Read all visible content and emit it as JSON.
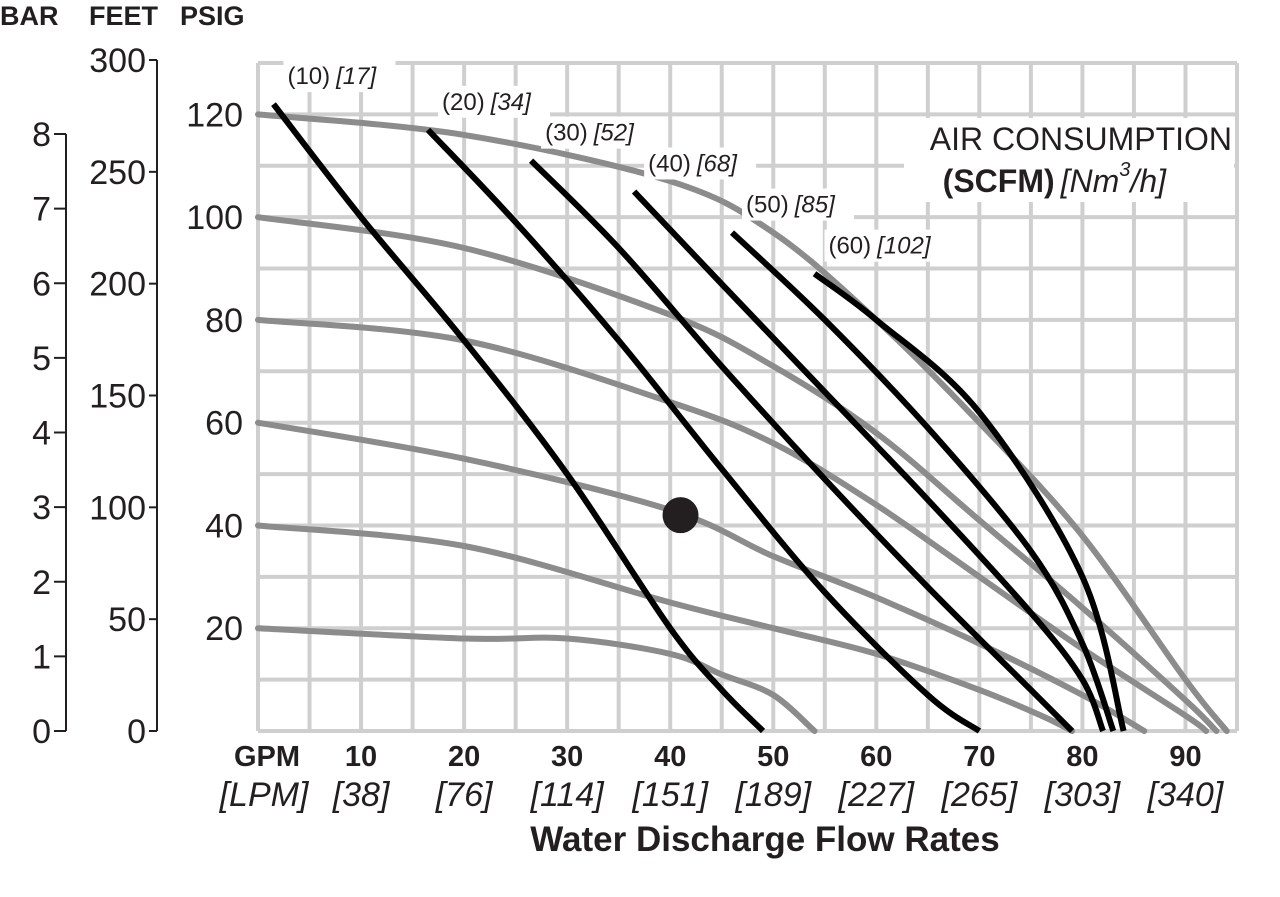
{
  "header": {
    "bar_label": "BAR",
    "feet_label": "FEET",
    "psig_label": "PSIG"
  },
  "chart_data": {
    "type": "line",
    "xlabel": "Water Discharge Flow Rates",
    "xunit_primary": "GPM",
    "xunit_secondary": "[LPM]",
    "xlim": [
      0,
      95
    ],
    "x_ticks": [
      {
        "gpm": "10",
        "lpm": "[38]"
      },
      {
        "gpm": "20",
        "lpm": "[76]"
      },
      {
        "gpm": "30",
        "lpm": "[114]"
      },
      {
        "gpm": "40",
        "lpm": "[151]"
      },
      {
        "gpm": "50",
        "lpm": "[189]"
      },
      {
        "gpm": "60",
        "lpm": "[227]"
      },
      {
        "gpm": "70",
        "lpm": "[265]"
      },
      {
        "gpm": "80",
        "lpm": "[303]"
      },
      {
        "gpm": "90",
        "lpm": "[340]"
      }
    ],
    "ylim_psig": [
      0,
      130
    ],
    "y_psig_ticks": [
      "20",
      "40",
      "60",
      "80",
      "100",
      "120"
    ],
    "y_feet_ticks": [
      "0",
      "50",
      "100",
      "150",
      "200",
      "250",
      "300"
    ],
    "y_bar_ticks": [
      "0",
      "1",
      "2",
      "3",
      "4",
      "5",
      "6",
      "7",
      "8"
    ],
    "grid": true,
    "legend": {
      "line1": "AIR CONSUMPTION",
      "line2_bold": "(SCFM)",
      "line2_italic_a": "[Nm",
      "line2_sup": "3",
      "line2_italic_b": "/h]",
      "placement": "top-right"
    },
    "pressure_curves": [
      {
        "name": "120",
        "points": [
          [
            0,
            120
          ],
          [
            20,
            116
          ],
          [
            40,
            107
          ],
          [
            50,
            97
          ],
          [
            60,
            80
          ],
          [
            70,
            60
          ],
          [
            80,
            38
          ],
          [
            90,
            10
          ],
          [
            94,
            0
          ]
        ]
      },
      {
        "name": "100",
        "points": [
          [
            0,
            100
          ],
          [
            20,
            94
          ],
          [
            40,
            81
          ],
          [
            50,
            71
          ],
          [
            60,
            58
          ],
          [
            70,
            41
          ],
          [
            80,
            24
          ],
          [
            90,
            6
          ],
          [
            93,
            0
          ]
        ]
      },
      {
        "name": "80",
        "points": [
          [
            0,
            80
          ],
          [
            20,
            76
          ],
          [
            40,
            64
          ],
          [
            50,
            56
          ],
          [
            60,
            44
          ],
          [
            70,
            30
          ],
          [
            80,
            16
          ],
          [
            90,
            3
          ],
          [
            92,
            0
          ]
        ]
      },
      {
        "name": "60",
        "points": [
          [
            0,
            60
          ],
          [
            20,
            53
          ],
          [
            40,
            43
          ],
          [
            50,
            34
          ],
          [
            60,
            26
          ],
          [
            70,
            17
          ],
          [
            80,
            7
          ],
          [
            86,
            0
          ]
        ]
      },
      {
        "name": "40",
        "points": [
          [
            0,
            40
          ],
          [
            20,
            36
          ],
          [
            40,
            25
          ],
          [
            50,
            20
          ],
          [
            60,
            15
          ],
          [
            70,
            8
          ],
          [
            76,
            3
          ],
          [
            79,
            0
          ]
        ]
      },
      {
        "name": "20",
        "points": [
          [
            0,
            20
          ],
          [
            20,
            18
          ],
          [
            30,
            18
          ],
          [
            40,
            15
          ],
          [
            45,
            11
          ],
          [
            50,
            7
          ],
          [
            54,
            0
          ]
        ]
      }
    ],
    "air_curves": [
      {
        "label": "(10)",
        "label_metric": "[17]",
        "points": [
          [
            1.5,
            122
          ],
          [
            10,
            100
          ],
          [
            20,
            76
          ],
          [
            30,
            50
          ],
          [
            40,
            20
          ],
          [
            45,
            8
          ],
          [
            49,
            0
          ]
        ]
      },
      {
        "label": "(20)",
        "label_metric": "[34]",
        "points": [
          [
            16.5,
            117
          ],
          [
            25,
            99
          ],
          [
            35,
            76
          ],
          [
            45,
            51
          ],
          [
            55,
            27
          ],
          [
            65,
            7
          ],
          [
            70,
            0
          ]
        ]
      },
      {
        "label": "(30)",
        "label_metric": "[52]",
        "points": [
          [
            26.5,
            111
          ],
          [
            35,
            94
          ],
          [
            45,
            71
          ],
          [
            55,
            49
          ],
          [
            65,
            28
          ],
          [
            75,
            8
          ],
          [
            79,
            0
          ]
        ]
      },
      {
        "label": "(40)",
        "label_metric": "[68]",
        "points": [
          [
            36.5,
            105
          ],
          [
            45,
            87
          ],
          [
            55,
            66
          ],
          [
            65,
            45
          ],
          [
            75,
            23
          ],
          [
            80,
            10
          ],
          [
            82,
            0
          ]
        ]
      },
      {
        "label": "(50)",
        "label_metric": "[85]",
        "points": [
          [
            46,
            97
          ],
          [
            55,
            80
          ],
          [
            65,
            59
          ],
          [
            75,
            35
          ],
          [
            80,
            17
          ],
          [
            83,
            0
          ]
        ]
      },
      {
        "label": "(60)",
        "label_metric": "[102]",
        "points": [
          [
            54,
            89
          ],
          [
            60,
            80
          ],
          [
            70,
            62
          ],
          [
            80,
            30
          ],
          [
            84,
            0
          ]
        ]
      }
    ],
    "marker": {
      "gpm": 41,
      "psig": 42
    }
  }
}
